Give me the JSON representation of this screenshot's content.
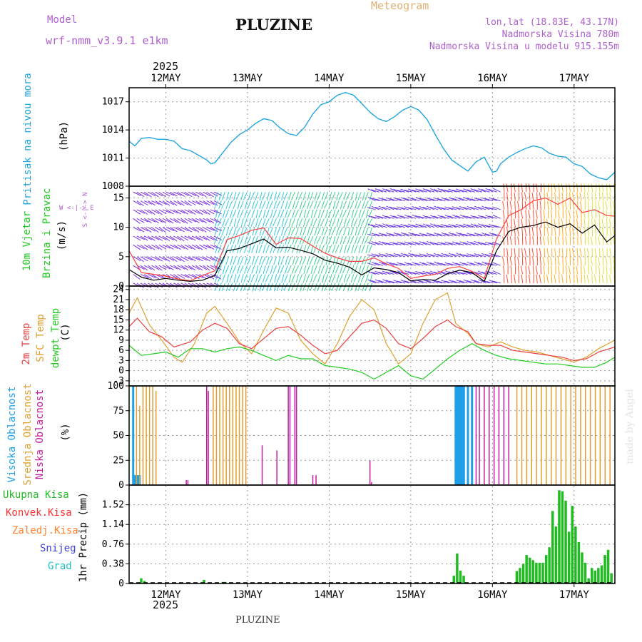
{
  "header": {
    "model_label": "Model",
    "model_name": "wrf-nmm_v3.9.1 e1km",
    "station": "PLUZINE",
    "meteogram_label": "Meteogram",
    "coords": "lon,lat (18.83E, 43.17N)",
    "altitude": "Nadmorska Visina 780m",
    "model_altitude": "Nadmorska Visina u modelu 915.155m",
    "year_top": "2025",
    "year_bottom": "2025",
    "footer_station": "PLUZINE",
    "watermark": "made by Angel"
  },
  "colors": {
    "model": "#b060d0",
    "meteogram": "#e0b070",
    "pressure": "#22a6e0",
    "wind_speed": "#000000",
    "gust": "#ff4040",
    "temp2m": "#e84040",
    "sfc_temp": "#e0a030",
    "dewpoint": "#22cc22",
    "cloud_high": "#1ea0e8",
    "cloud_mid": "#e0a030",
    "cloud_low": "#c020a0",
    "precip_total": "#22bb22",
    "precip_conv": "#ff3030",
    "precip_frz": "#ff8030",
    "precip_snow": "#4040e0",
    "precip_grad": "#20c0c0"
  },
  "chart_data": [
    {
      "type": "line",
      "panel": "pressure",
      "ylabel_title": "Pritisak na nivou mora",
      "unit": "(hPa)",
      "x_tick_labels": [
        "12MAY",
        "13MAY",
        "14MAY",
        "15MAY",
        "16MAY",
        "17MAY"
      ],
      "x_range_days": [
        11.55,
        17.5
      ],
      "ylim": [
        1008,
        1018.5
      ],
      "yticks": [
        "1008",
        "1011",
        "1014",
        "1017"
      ],
      "series": [
        {
          "x": [
            11.55,
            11.62,
            11.7,
            11.8,
            11.9,
            12.0,
            12.1,
            12.2,
            12.3,
            12.4,
            12.5,
            12.55,
            12.6,
            12.7,
            12.8,
            12.9,
            13.0,
            13.1,
            13.2,
            13.3,
            13.4,
            13.5,
            13.6,
            13.7,
            13.8,
            13.9,
            14.0,
            14.1,
            14.2,
            14.3,
            14.4,
            14.5,
            14.6,
            14.7,
            14.8,
            14.9,
            15.0,
            15.1,
            15.2,
            15.3,
            15.4,
            15.5,
            15.6,
            15.7,
            15.8,
            15.9,
            16.0,
            16.05,
            16.1,
            16.2,
            16.3,
            16.4,
            16.5,
            16.6,
            16.7,
            16.8,
            16.9,
            17.0,
            17.1,
            17.2,
            17.3,
            17.4,
            17.5
          ],
          "values": [
            1012.8,
            1012.3,
            1013.1,
            1013.2,
            1013.0,
            1013.0,
            1012.8,
            1012.0,
            1011.8,
            1011.3,
            1010.8,
            1010.4,
            1010.5,
            1011.6,
            1012.7,
            1013.5,
            1014.0,
            1014.7,
            1015.2,
            1015.0,
            1014.2,
            1013.6,
            1013.4,
            1014.3,
            1015.7,
            1016.7,
            1017.0,
            1017.7,
            1018.0,
            1017.7,
            1016.8,
            1015.9,
            1015.2,
            1014.9,
            1015.4,
            1016.1,
            1016.5,
            1016.1,
            1015.1,
            1013.5,
            1012.0,
            1010.8,
            1010.2,
            1009.6,
            1010.6,
            1011.1,
            1009.5,
            1009.6,
            1010.4,
            1011.1,
            1011.6,
            1012.0,
            1012.3,
            1012.1,
            1011.5,
            1011.2,
            1011.1,
            1010.4,
            1010.1,
            1009.3,
            1008.9,
            1008.7,
            1009.5
          ]
        }
      ]
    },
    {
      "type": "line",
      "panel": "wind",
      "ylabel_title1": "10m Vjetar",
      "ylabel_title2": "Brzina i Pravac",
      "unit": "(m/s)",
      "compass": "W <-|-> E",
      "compass_ns": "S <-|-> N",
      "ylim": [
        0,
        17
      ],
      "yticks": [
        "0",
        "5",
        "10",
        "15"
      ],
      "series": [
        {
          "name": "speed",
          "x": [
            11.55,
            11.7,
            11.85,
            12.0,
            12.15,
            12.3,
            12.45,
            12.6,
            12.75,
            12.9,
            13.05,
            13.2,
            13.35,
            13.5,
            13.65,
            13.8,
            13.95,
            14.1,
            14.25,
            14.4,
            14.55,
            14.7,
            14.85,
            15.0,
            15.15,
            15.3,
            15.45,
            15.6,
            15.75,
            15.9,
            16.05,
            16.2,
            16.35,
            16.5,
            16.65,
            16.8,
            16.95,
            17.1,
            17.25,
            17.4,
            17.5
          ],
          "values": [
            2.8,
            1.5,
            1.0,
            1.3,
            1.0,
            0.8,
            1.0,
            1.8,
            6.0,
            6.4,
            7.2,
            8.0,
            6.5,
            6.6,
            6.1,
            5.5,
            4.4,
            3.9,
            3.2,
            1.9,
            3.1,
            2.8,
            2.3,
            0.9,
            1.1,
            1.0,
            2.1,
            2.7,
            2.3,
            0.8,
            6.0,
            9.3,
            10.0,
            10.3,
            10.9,
            10.0,
            10.6,
            9.0,
            10.4,
            7.5,
            8.6
          ]
        },
        {
          "name": "gust",
          "x": [
            11.55,
            11.7,
            11.85,
            12.0,
            12.15,
            12.3,
            12.45,
            12.6,
            12.75,
            12.9,
            13.05,
            13.2,
            13.35,
            13.5,
            13.65,
            13.8,
            13.95,
            14.1,
            14.25,
            14.4,
            14.55,
            14.7,
            14.85,
            15.0,
            15.15,
            15.3,
            15.45,
            15.6,
            15.75,
            15.9,
            16.05,
            16.2,
            16.35,
            16.5,
            16.65,
            16.8,
            16.95,
            17.1,
            17.25,
            17.4,
            17.5
          ],
          "values": [
            6.0,
            2.3,
            2.0,
            1.7,
            1.2,
            0.9,
            1.8,
            2.6,
            7.9,
            8.6,
            9.5,
            9.9,
            7.1,
            8.2,
            8.1,
            6.8,
            5.6,
            4.8,
            4.2,
            4.2,
            4.8,
            3.8,
            3.0,
            1.3,
            1.7,
            2.0,
            3.0,
            3.3,
            2.5,
            1.3,
            8.0,
            12.0,
            13.0,
            14.5,
            15.0,
            13.9,
            15.0,
            12.5,
            13.0,
            12.0,
            11.9
          ]
        }
      ]
    },
    {
      "type": "line",
      "panel": "temperature",
      "label_2m": "2m Temp",
      "label_sfc": "SFC Temp",
      "label_dew": "dewpt Temp",
      "unit": "(C)",
      "ylim": [
        -4.5,
        25
      ],
      "yticks": [
        "-3",
        "0",
        "3",
        "6",
        "9",
        "12",
        "15",
        "18",
        "21",
        "24"
      ],
      "series": [
        {
          "name": "2m",
          "x": [
            11.55,
            11.65,
            11.8,
            11.95,
            12.1,
            12.3,
            12.45,
            12.6,
            12.75,
            12.9,
            13.05,
            13.2,
            13.35,
            13.5,
            13.65,
            13.8,
            13.95,
            14.1,
            14.25,
            14.4,
            14.55,
            14.7,
            14.85,
            15.0,
            15.15,
            15.3,
            15.45,
            15.55,
            15.7,
            15.8,
            15.95,
            16.1,
            16.25,
            16.4,
            16.55,
            16.7,
            16.85,
            17.0,
            17.15,
            17.3,
            17.5
          ],
          "values": [
            13.0,
            15.5,
            11.5,
            10.0,
            7.0,
            8.5,
            12.0,
            14.0,
            12.5,
            8.0,
            6.5,
            9.5,
            12.5,
            13.0,
            10.5,
            7.5,
            5.0,
            6.0,
            10.0,
            14.0,
            15.0,
            12.5,
            8.0,
            6.5,
            9.5,
            13.0,
            15.0,
            13.0,
            11.5,
            8.0,
            7.5,
            7.5,
            6.0,
            5.5,
            5.0,
            4.5,
            4.0,
            3.0,
            3.5,
            5.5,
            7.0
          ]
        },
        {
          "name": "sfc",
          "x": [
            11.55,
            11.65,
            11.8,
            11.95,
            12.1,
            12.2,
            12.35,
            12.5,
            12.6,
            12.75,
            12.9,
            13.05,
            13.2,
            13.35,
            13.5,
            13.65,
            13.8,
            13.95,
            14.1,
            14.25,
            14.4,
            14.55,
            14.7,
            14.85,
            15.0,
            15.15,
            15.3,
            15.45,
            15.55,
            15.7,
            15.8,
            15.95,
            16.1,
            16.25,
            16.4,
            16.55,
            16.7,
            16.85,
            17.0,
            17.15,
            17.3,
            17.5
          ],
          "values": [
            17.0,
            21.5,
            13.5,
            9.0,
            4.0,
            2.5,
            8.0,
            17.0,
            19.0,
            14.0,
            8.5,
            5.0,
            12.0,
            18.5,
            17.0,
            9.0,
            5.0,
            2.0,
            8.0,
            16.0,
            21.0,
            18.0,
            8.0,
            2.0,
            5.0,
            14.0,
            21.0,
            23.0,
            14.0,
            11.0,
            8.0,
            7.0,
            8.5,
            7.0,
            6.0,
            5.5,
            4.5,
            3.5,
            2.5,
            4.0,
            6.5,
            9.0
          ]
        },
        {
          "name": "dew",
          "x": [
            11.55,
            11.7,
            11.85,
            12.0,
            12.15,
            12.3,
            12.45,
            12.6,
            12.75,
            12.9,
            13.05,
            13.2,
            13.35,
            13.5,
            13.65,
            13.8,
            13.95,
            14.1,
            14.25,
            14.4,
            14.55,
            14.7,
            14.85,
            15.0,
            15.15,
            15.3,
            15.45,
            15.6,
            15.75,
            15.9,
            16.05,
            16.2,
            16.35,
            16.5,
            16.65,
            16.8,
            16.95,
            17.1,
            17.25,
            17.4,
            17.5
          ],
          "values": [
            7.5,
            4.5,
            5.0,
            5.5,
            4.0,
            6.5,
            6.5,
            5.5,
            6.5,
            7.0,
            6.0,
            4.5,
            3.0,
            4.5,
            3.5,
            3.5,
            1.5,
            1.0,
            0.5,
            -0.5,
            -2.5,
            -0.5,
            1.5,
            -1.5,
            -2.5,
            0.5,
            3.5,
            6.0,
            8.0,
            6.0,
            4.5,
            3.5,
            3.0,
            2.5,
            2.0,
            2.0,
            1.5,
            1.0,
            1.0,
            2.5,
            4.0
          ]
        }
      ]
    },
    {
      "type": "bar",
      "panel": "clouds",
      "label_high": "Visoka Oblacnost",
      "label_mid": "Srednja Oblacnost",
      "label_low": "Niska Oblacnost",
      "unit": "(%)",
      "ylim": [
        0,
        100
      ],
      "yticks": [
        "0",
        "25",
        "50",
        "75",
        "100"
      ],
      "series": [
        {
          "name": "high",
          "x": [
            11.6,
            11.62,
            11.64,
            11.66,
            11.68,
            15.55,
            15.57,
            15.59,
            15.61,
            15.63,
            15.65,
            15.7,
            15.75
          ],
          "values": [
            100,
            10,
            10,
            10,
            10,
            100,
            100,
            100,
            100,
            100,
            100,
            100,
            100
          ]
        },
        {
          "name": "mid",
          "x": [
            11.64,
            11.68,
            11.72,
            11.76,
            11.8,
            11.84,
            11.88,
            12.5,
            12.58,
            12.62,
            12.66,
            12.7,
            12.74,
            12.78,
            12.82,
            12.86,
            12.9,
            12.94,
            12.98,
            16.3,
            16.36,
            16.42,
            16.48,
            16.54,
            16.6,
            16.66,
            16.72,
            16.78,
            16.84,
            16.9,
            16.96,
            17.02,
            17.08,
            17.14,
            17.2,
            17.26,
            17.32,
            17.38,
            17.44
          ],
          "values": [
            100,
            80,
            100,
            100,
            100,
            100,
            95,
            95,
            100,
            100,
            100,
            100,
            100,
            100,
            100,
            100,
            100,
            100,
            100,
            100,
            100,
            100,
            100,
            100,
            100,
            100,
            100,
            100,
            100,
            100,
            100,
            100,
            100,
            100,
            100,
            100,
            100,
            100,
            100
          ]
        },
        {
          "name": "low",
          "x": [
            12.25,
            12.27,
            12.5,
            12.52,
            13.18,
            13.36,
            13.5,
            13.52,
            13.58,
            13.6,
            13.8,
            13.84,
            14.5,
            14.52,
            15.8,
            15.84,
            15.9,
            15.96,
            16.02,
            16.08,
            16.14,
            16.2
          ],
          "values": [
            5,
            5,
            100,
            95,
            40,
            35,
            100,
            100,
            100,
            100,
            10,
            10,
            25,
            3,
            100,
            100,
            100,
            100,
            100,
            100,
            100,
            100
          ]
        }
      ]
    },
    {
      "type": "bar",
      "panel": "precipitation",
      "label_total": "Ukupna Kisa",
      "label_conv": "Konvek.Kisa",
      "label_frz": "Zaledj.Kisa",
      "label_snow": "Snijeg",
      "label_grad": "Grad",
      "unit": "1hr Precip (mm)",
      "ylim": [
        0,
        1.9
      ],
      "yticks": [
        "0",
        "0.38",
        "0.76",
        "1.14",
        "1.52"
      ],
      "series": [
        {
          "name": "total",
          "x": [
            11.7,
            11.74,
            12.47,
            12.7,
            12.73,
            15.53,
            15.57,
            15.61,
            15.65,
            16.3,
            16.34,
            16.38,
            16.42,
            16.46,
            16.5,
            16.54,
            16.58,
            16.62,
            16.66,
            16.7,
            16.74,
            16.78,
            16.82,
            16.86,
            16.9,
            16.94,
            16.98,
            17.02,
            17.06,
            17.1,
            17.14,
            17.18,
            17.22,
            17.26,
            17.3,
            17.34,
            17.38,
            17.42,
            17.46
          ],
          "values": [
            0.1,
            0.05,
            0.07,
            0.03,
            0.03,
            0.15,
            0.58,
            0.25,
            0.15,
            0.24,
            0.3,
            0.38,
            0.55,
            0.5,
            0.45,
            0.4,
            0.4,
            0.4,
            0.55,
            0.7,
            1.4,
            1.1,
            1.8,
            1.78,
            1.6,
            1.0,
            1.5,
            1.1,
            0.8,
            0.6,
            0.4,
            0.1,
            0.3,
            0.25,
            0.3,
            0.35,
            0.55,
            0.65,
            0.2
          ]
        }
      ]
    }
  ]
}
